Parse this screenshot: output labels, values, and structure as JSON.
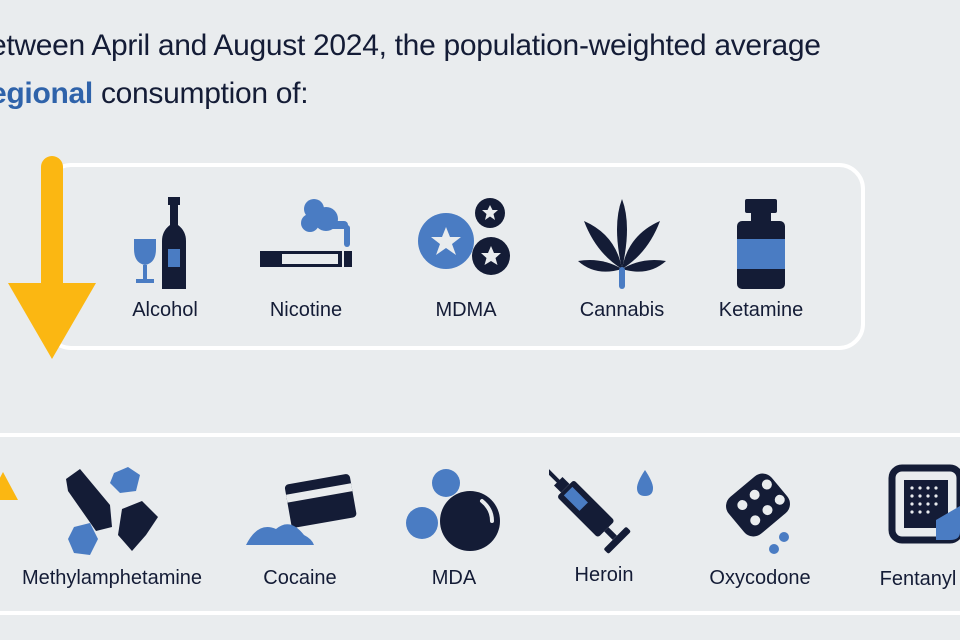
{
  "headline": {
    "line1": "etween April and August 2024, the population-weighted average",
    "line2_highlight": "egional",
    "line2_rest": " consumption of:"
  },
  "colors": {
    "navy": "#141c36",
    "blue": "#4a7cc3",
    "accent_text": "#2f63aa",
    "arrow": "#fbb712",
    "background": "#e9ecee"
  },
  "decreased": {
    "arrow": "arrow-down-icon",
    "items": [
      {
        "label": "Alcohol",
        "icon": "alcohol-bottle-icon"
      },
      {
        "label": "Nicotine",
        "icon": "cigarette-icon"
      },
      {
        "label": "MDMA",
        "icon": "mdma-pills-icon"
      },
      {
        "label": "Cannabis",
        "icon": "cannabis-leaf-icon"
      },
      {
        "label": "Ketamine",
        "icon": "ketamine-vial-icon"
      }
    ]
  },
  "increased": {
    "arrow": "arrow-up-icon",
    "items": [
      {
        "label": "Methylamphetamine",
        "icon": "crystal-icon"
      },
      {
        "label": "Cocaine",
        "icon": "cocaine-card-icon"
      },
      {
        "label": "MDA",
        "icon": "mda-pills-icon"
      },
      {
        "label": "Heroin",
        "icon": "syringe-icon"
      },
      {
        "label": "Oxycodone",
        "icon": "blister-pack-icon"
      },
      {
        "label": "Fentanyl",
        "icon": "fentanyl-patch-icon"
      }
    ]
  }
}
